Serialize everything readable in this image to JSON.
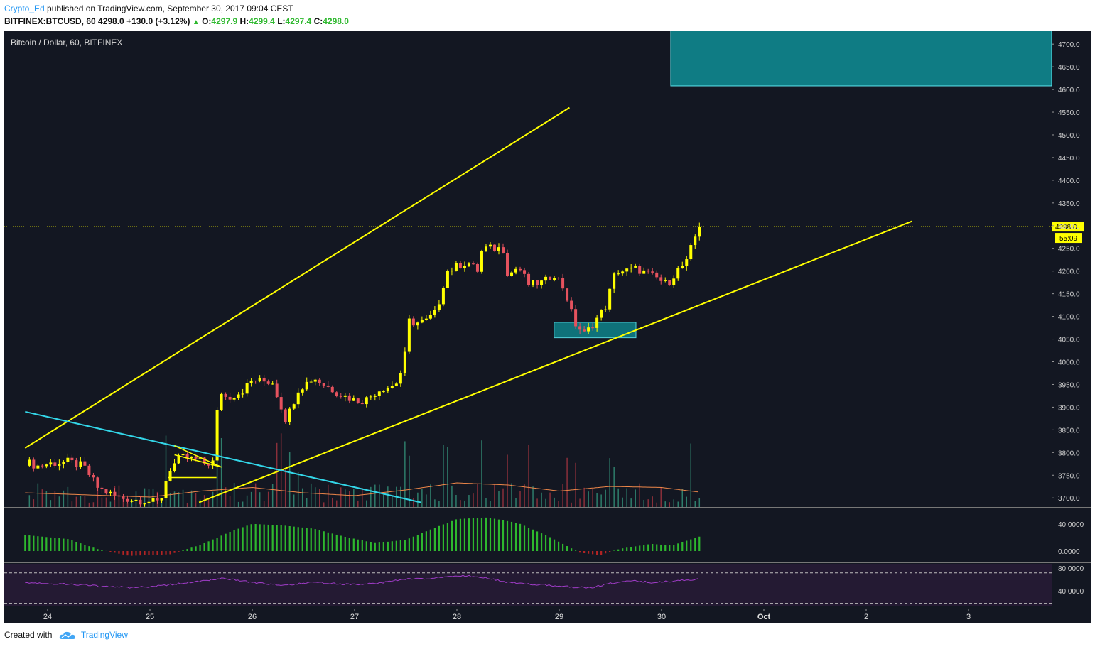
{
  "header": {
    "author": "Crypto_Ed",
    "published_text": "published on TradingView.com, September 30, 2017 09:04 CEST",
    "symbol": "BITFINEX:BTCUSD, 60",
    "last": "4298.0",
    "change": "+130.0 (+3.12%)",
    "o_label": "O:",
    "o_value": "4297.9",
    "h_label": "H:",
    "h_value": "4299.4",
    "l_label": "L:",
    "l_value": "4297.4",
    "c_label": "C:",
    "c_value": "4298.0"
  },
  "footer": {
    "created_with": "Created with",
    "brand": "TradingView"
  },
  "colors": {
    "background": "#131722",
    "bull": "#ffff00",
    "bear": "#e5525e",
    "channel": "#ffff00",
    "trendline": "#33d6e8",
    "zone": "#0f7c84",
    "macd_up": "#2eb82e",
    "macd_down": "#b32424",
    "rsi": "#a03cc8",
    "volume_ma": "#f0884a"
  },
  "chart_data": {
    "type": "candlestick",
    "title": "Bitcoin / Dollar, 60, BITFINEX",
    "last_price": 4298.0,
    "countdown": "55:09",
    "ylim": [
      3680,
      4730
    ],
    "y_ticks": [
      "3700.0",
      "3750.0",
      "3800.0",
      "3850.0",
      "3900.0",
      "3950.0",
      "4000.0",
      "4050.0",
      "4100.0",
      "4150.0",
      "4200.0",
      "4250.0",
      "4300.0",
      "4350.0",
      "4400.0",
      "4450.0",
      "4500.0",
      "4550.0",
      "4600.0",
      "4650.0",
      "4700.0"
    ],
    "x_ticks": [
      "24",
      "25",
      "26",
      "27",
      "28",
      "29",
      "30",
      "Oct",
      "2",
      "3"
    ],
    "price_path": [
      [
        23.78,
        3780
      ],
      [
        23.9,
        3770
      ],
      [
        24.0,
        3775
      ],
      [
        24.2,
        3780
      ],
      [
        24.35,
        3770
      ],
      [
        24.5,
        3720
      ],
      [
        24.7,
        3700
      ],
      [
        24.9,
        3695
      ],
      [
        25.1,
        3690
      ],
      [
        25.18,
        3760
      ],
      [
        25.3,
        3790
      ],
      [
        25.45,
        3785
      ],
      [
        25.55,
        3775
      ],
      [
        25.63,
        3780
      ],
      [
        25.67,
        3940
      ],
      [
        25.75,
        3920
      ],
      [
        25.9,
        3935
      ],
      [
        26.0,
        3960
      ],
      [
        26.2,
        3955
      ],
      [
        26.33,
        3870
      ],
      [
        26.45,
        3940
      ],
      [
        26.6,
        3965
      ],
      [
        26.7,
        3950
      ],
      [
        26.85,
        3930
      ],
      [
        27.0,
        3915
      ],
      [
        27.1,
        3915
      ],
      [
        27.25,
        3940
      ],
      [
        27.4,
        3950
      ],
      [
        27.48,
        3990
      ],
      [
        27.53,
        4090
      ],
      [
        27.6,
        4085
      ],
      [
        27.7,
        4090
      ],
      [
        27.8,
        4110
      ],
      [
        27.9,
        4200
      ],
      [
        28.0,
        4210
      ],
      [
        28.1,
        4220
      ],
      [
        28.2,
        4200
      ],
      [
        28.25,
        4250
      ],
      [
        28.35,
        4250
      ],
      [
        28.45,
        4250
      ],
      [
        28.5,
        4190
      ],
      [
        28.6,
        4210
      ],
      [
        28.7,
        4170
      ],
      [
        28.85,
        4175
      ],
      [
        28.95,
        4195
      ],
      [
        29.05,
        4160
      ],
      [
        29.15,
        4085
      ],
      [
        29.25,
        4060
      ],
      [
        29.3,
        4075
      ],
      [
        29.35,
        4090
      ],
      [
        29.45,
        4120
      ],
      [
        29.55,
        4200
      ],
      [
        29.65,
        4200
      ],
      [
        29.75,
        4205
      ],
      [
        29.85,
        4195
      ],
      [
        29.95,
        4185
      ],
      [
        30.05,
        4170
      ],
      [
        30.15,
        4200
      ],
      [
        30.25,
        4220
      ],
      [
        30.3,
        4260
      ],
      [
        30.37,
        4298
      ]
    ],
    "volume_ma_path": [
      [
        23.78,
        0.4
      ],
      [
        24.3,
        0.35
      ],
      [
        25.0,
        0.28
      ],
      [
        25.5,
        0.45
      ],
      [
        26.0,
        0.55
      ],
      [
        26.5,
        0.4
      ],
      [
        27.0,
        0.32
      ],
      [
        27.5,
        0.48
      ],
      [
        28.0,
        0.68
      ],
      [
        28.5,
        0.62
      ],
      [
        29.0,
        0.45
      ],
      [
        29.5,
        0.58
      ],
      [
        30.0,
        0.55
      ],
      [
        30.37,
        0.42
      ]
    ],
    "macd_path": [
      [
        23.78,
        20
      ],
      [
        24.2,
        15
      ],
      [
        24.5,
        2
      ],
      [
        24.8,
        -6
      ],
      [
        25.2,
        -4
      ],
      [
        25.5,
        8
      ],
      [
        25.8,
        25
      ],
      [
        26.0,
        34
      ],
      [
        26.3,
        32
      ],
      [
        26.6,
        28
      ],
      [
        26.9,
        18
      ],
      [
        27.2,
        10
      ],
      [
        27.5,
        14
      ],
      [
        27.8,
        30
      ],
      [
        28.0,
        40
      ],
      [
        28.3,
        42
      ],
      [
        28.6,
        35
      ],
      [
        28.9,
        18
      ],
      [
        29.2,
        -2
      ],
      [
        29.4,
        -5
      ],
      [
        29.6,
        3
      ],
      [
        29.9,
        9
      ],
      [
        30.1,
        7
      ],
      [
        30.37,
        18
      ]
    ],
    "macd_ticks": [
      "40.0000",
      "0.0000"
    ],
    "rsi_path": [
      [
        23.78,
        60
      ],
      [
        24.0,
        58
      ],
      [
        24.3,
        56
      ],
      [
        24.5,
        53
      ],
      [
        24.8,
        51
      ],
      [
        25.0,
        52
      ],
      [
        25.2,
        56
      ],
      [
        25.5,
        62
      ],
      [
        25.7,
        68
      ],
      [
        26.0,
        60
      ],
      [
        26.3,
        55
      ],
      [
        26.6,
        60
      ],
      [
        27.0,
        56
      ],
      [
        27.3,
        60
      ],
      [
        27.5,
        66
      ],
      [
        27.7,
        67
      ],
      [
        27.9,
        70
      ],
      [
        28.1,
        72
      ],
      [
        28.3,
        68
      ],
      [
        28.5,
        60
      ],
      [
        28.7,
        57
      ],
      [
        28.9,
        55
      ],
      [
        29.1,
        52
      ],
      [
        29.3,
        50
      ],
      [
        29.5,
        58
      ],
      [
        29.7,
        63
      ],
      [
        29.9,
        60
      ],
      [
        30.1,
        62
      ],
      [
        30.37,
        66
      ]
    ],
    "rsi_ticks": [
      "80.0000",
      "40.0000"
    ],
    "channel_upper": [
      [
        23.78,
        3810
      ],
      [
        29.1,
        4560
      ]
    ],
    "channel_lower": [
      [
        25.48,
        3690
      ],
      [
        32.45,
        4310
      ]
    ],
    "descending_trendline": [
      [
        23.78,
        3890
      ],
      [
        27.65,
        3690
      ]
    ],
    "supply_zone": {
      "x": [
        30.09,
        33.85
      ],
      "y": [
        4608,
        4730
      ]
    },
    "demand_zone": {
      "x": [
        28.95,
        29.75
      ],
      "y": [
        4053,
        4087
      ]
    }
  }
}
